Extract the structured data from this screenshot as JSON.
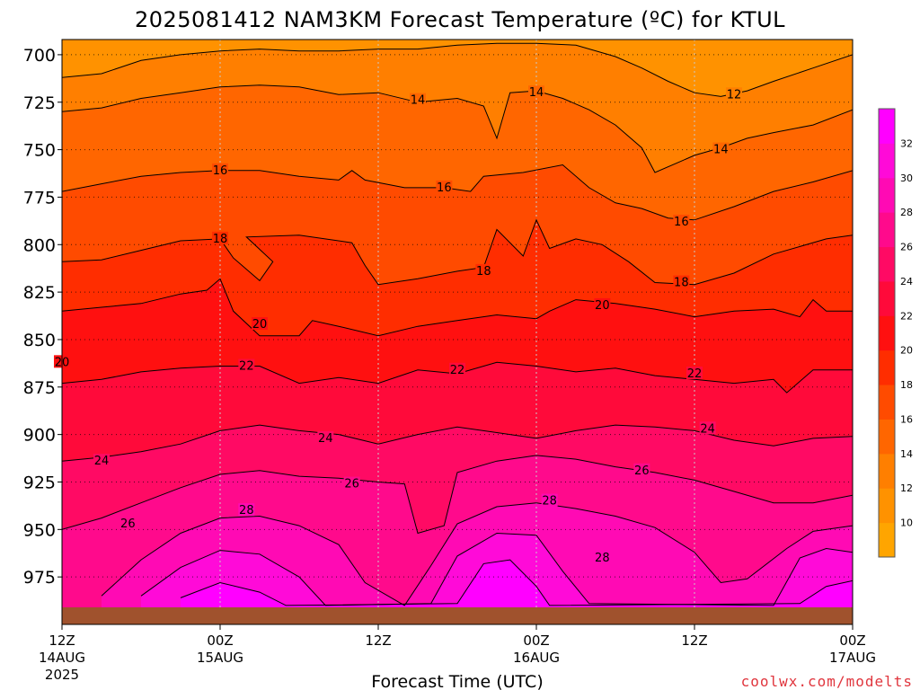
{
  "chart_data": {
    "type": "heatmap",
    "title": "2025081412 NAM3KM Forecast Temperature (ºC) for KTUL",
    "xlabel": "Forecast Time (UTC)",
    "ylabel": "",
    "y_scale": "pressure (inverted)",
    "ylim": [
      1000,
      692
    ],
    "y_ticks": [
      700,
      725,
      750,
      775,
      800,
      825,
      850,
      875,
      900,
      925,
      950,
      975
    ],
    "x_ticks": [
      {
        "hour": 0,
        "lines": [
          "12Z",
          "14AUG",
          "2025"
        ]
      },
      {
        "hour": 12,
        "lines": [
          "00Z",
          "15AUG"
        ]
      },
      {
        "hour": 24,
        "lines": [
          "12Z"
        ]
      },
      {
        "hour": 36,
        "lines": [
          "00Z",
          "16AUG"
        ]
      },
      {
        "hour": 48,
        "lines": [
          "12Z"
        ]
      },
      {
        "hour": 60,
        "lines": [
          "00Z",
          "17AUG"
        ]
      }
    ],
    "xlim": [
      0,
      60
    ],
    "grid": true,
    "colorbar": {
      "levels": [
        8,
        10,
        12,
        14,
        16,
        18,
        20,
        22,
        24,
        26,
        28,
        30,
        32,
        34
      ],
      "labels": [
        10,
        12,
        14,
        16,
        18,
        20,
        22,
        24,
        26,
        28,
        30,
        32
      ],
      "colors": [
        "#ffa500",
        "#ff9200",
        "#ff7f00",
        "#ff6600",
        "#ff4b00",
        "#ff2d00",
        "#ff1010",
        "#ff0a3a",
        "#ff0a64",
        "#ff0a8c",
        "#ff0ab4",
        "#ff0ad8",
        "#ff00ff"
      ]
    },
    "contour_labels": [
      12,
      14,
      16,
      18,
      20,
      22,
      24,
      26,
      28
    ],
    "isotherms": [
      {
        "t": 12,
        "points": [
          [
            0,
            712
          ],
          [
            3,
            710
          ],
          [
            6,
            703
          ],
          [
            9,
            700
          ],
          [
            12,
            698
          ],
          [
            15,
            697
          ],
          [
            18,
            698
          ],
          [
            21,
            698
          ],
          [
            24,
            697
          ],
          [
            27,
            697
          ],
          [
            30,
            695
          ],
          [
            33,
            694
          ],
          [
            36,
            694
          ],
          [
            39,
            695
          ],
          [
            42,
            701
          ],
          [
            44,
            707
          ],
          [
            46,
            714
          ],
          [
            48,
            720
          ],
          [
            50,
            722
          ],
          [
            52,
            719
          ],
          [
            54,
            714
          ],
          [
            57,
            707
          ],
          [
            60,
            700
          ]
        ],
        "labels": [
          [
            51,
            721
          ]
        ]
      },
      {
        "t": 14,
        "points": [
          [
            0,
            730
          ],
          [
            3,
            728
          ],
          [
            6,
            723
          ],
          [
            9,
            720
          ],
          [
            12,
            717
          ],
          [
            15,
            716
          ],
          [
            18,
            717
          ],
          [
            21,
            721
          ],
          [
            24,
            720
          ],
          [
            27,
            725
          ],
          [
            30,
            723
          ],
          [
            32,
            727
          ],
          [
            33,
            744
          ],
          [
            34,
            720
          ],
          [
            36,
            719
          ],
          [
            38,
            723
          ],
          [
            40,
            729
          ],
          [
            42,
            737
          ],
          [
            44,
            749
          ],
          [
            45,
            762
          ],
          [
            47,
            756
          ],
          [
            48,
            753
          ],
          [
            50,
            749
          ],
          [
            52,
            744
          ],
          [
            54,
            741
          ],
          [
            57,
            737
          ],
          [
            60,
            729
          ]
        ],
        "labels": [
          [
            27,
            724
          ],
          [
            36,
            720
          ],
          [
            50,
            750
          ]
        ]
      },
      {
        "t": 16,
        "points": [
          [
            0,
            772
          ],
          [
            3,
            768
          ],
          [
            6,
            764
          ],
          [
            9,
            762
          ],
          [
            12,
            761
          ],
          [
            15,
            761
          ],
          [
            18,
            764
          ],
          [
            21,
            766
          ],
          [
            22,
            761
          ],
          [
            23,
            766
          ],
          [
            26,
            770
          ],
          [
            29,
            770
          ],
          [
            31,
            772
          ],
          [
            32,
            764
          ],
          [
            35,
            762
          ],
          [
            38,
            758
          ],
          [
            40,
            770
          ],
          [
            42,
            778
          ],
          [
            44,
            781
          ],
          [
            46,
            786
          ],
          [
            48,
            787
          ],
          [
            51,
            780
          ],
          [
            54,
            772
          ],
          [
            57,
            767
          ],
          [
            60,
            761
          ]
        ],
        "labels": [
          [
            12,
            761
          ],
          [
            29,
            770
          ],
          [
            47,
            788
          ]
        ]
      },
      {
        "t": 18,
        "points": [
          [
            0,
            809
          ],
          [
            3,
            808
          ],
          [
            6,
            803
          ],
          [
            9,
            798
          ],
          [
            12,
            797
          ],
          [
            13,
            807
          ],
          [
            15,
            819
          ],
          [
            16,
            809
          ],
          [
            14,
            796
          ],
          [
            18,
            795
          ],
          [
            22,
            799
          ],
          [
            23,
            811
          ],
          [
            24,
            821
          ],
          [
            27,
            818
          ],
          [
            30,
            814
          ],
          [
            32,
            812
          ],
          [
            33,
            792
          ],
          [
            35,
            806
          ],
          [
            36,
            787
          ],
          [
            37,
            802
          ],
          [
            39,
            797
          ],
          [
            41,
            800
          ],
          [
            43,
            809
          ],
          [
            45,
            820
          ],
          [
            48,
            821
          ],
          [
            51,
            815
          ],
          [
            54,
            805
          ],
          [
            56,
            801
          ],
          [
            58,
            797
          ],
          [
            60,
            795
          ]
        ],
        "labels": [
          [
            12,
            797
          ],
          [
            32,
            814
          ],
          [
            47,
            820
          ]
        ]
      },
      {
        "t": 20,
        "points": [
          [
            0,
            835
          ],
          [
            3,
            833
          ],
          [
            6,
            831
          ],
          [
            9,
            826
          ],
          [
            11,
            824
          ],
          [
            12,
            818
          ],
          [
            13,
            835
          ],
          [
            15,
            848
          ],
          [
            18,
            848
          ],
          [
            19,
            840
          ],
          [
            21,
            843
          ],
          [
            24,
            848
          ],
          [
            27,
            843
          ],
          [
            30,
            840
          ],
          [
            33,
            837
          ],
          [
            36,
            839
          ],
          [
            37,
            835
          ],
          [
            39,
            829
          ],
          [
            42,
            831
          ],
          [
            45,
            834
          ],
          [
            48,
            838
          ],
          [
            51,
            835
          ],
          [
            54,
            834
          ],
          [
            56,
            838
          ],
          [
            57,
            829
          ],
          [
            58,
            835
          ],
          [
            60,
            835
          ]
        ],
        "labels": [
          [
            0,
            862
          ],
          [
            15,
            842
          ],
          [
            41,
            832
          ]
        ]
      },
      {
        "t": 22,
        "points": [
          [
            0,
            873
          ],
          [
            3,
            871
          ],
          [
            6,
            867
          ],
          [
            9,
            865
          ],
          [
            12,
            864
          ],
          [
            15,
            864
          ],
          [
            18,
            873
          ],
          [
            21,
            870
          ],
          [
            24,
            873
          ],
          [
            27,
            866
          ],
          [
            30,
            868
          ],
          [
            33,
            862
          ],
          [
            36,
            864
          ],
          [
            39,
            867
          ],
          [
            42,
            865
          ],
          [
            45,
            869
          ],
          [
            48,
            871
          ],
          [
            51,
            873
          ],
          [
            54,
            871
          ],
          [
            55,
            878
          ],
          [
            57,
            866
          ],
          [
            60,
            866
          ]
        ],
        "labels": [
          [
            14,
            864
          ],
          [
            30,
            866
          ],
          [
            48,
            868
          ]
        ]
      },
      {
        "t": 24,
        "points": [
          [
            0,
            914
          ],
          [
            3,
            912
          ],
          [
            6,
            909
          ],
          [
            9,
            905
          ],
          [
            12,
            898
          ],
          [
            15,
            895
          ],
          [
            18,
            898
          ],
          [
            21,
            900
          ],
          [
            24,
            905
          ],
          [
            27,
            900
          ],
          [
            30,
            896
          ],
          [
            33,
            899
          ],
          [
            36,
            902
          ],
          [
            39,
            898
          ],
          [
            42,
            895
          ],
          [
            45,
            896
          ],
          [
            48,
            898
          ],
          [
            51,
            903
          ],
          [
            54,
            906
          ],
          [
            57,
            902
          ],
          [
            60,
            901
          ]
        ],
        "labels": [
          [
            3,
            914
          ],
          [
            20,
            902
          ],
          [
            49,
            897
          ]
        ]
      },
      {
        "t": 26,
        "points": [
          [
            0,
            950
          ],
          [
            3,
            944
          ],
          [
            6,
            936
          ],
          [
            9,
            928
          ],
          [
            12,
            921
          ],
          [
            15,
            919
          ],
          [
            18,
            922
          ],
          [
            21,
            923
          ],
          [
            24,
            925
          ],
          [
            26,
            926
          ],
          [
            27,
            952
          ],
          [
            29,
            948
          ],
          [
            30,
            920
          ],
          [
            33,
            914
          ],
          [
            36,
            911
          ],
          [
            39,
            913
          ],
          [
            42,
            917
          ],
          [
            45,
            920
          ],
          [
            48,
            924
          ],
          [
            51,
            930
          ],
          [
            54,
            936
          ],
          [
            57,
            936
          ],
          [
            60,
            932
          ]
        ],
        "labels": [
          [
            5,
            947
          ],
          [
            22,
            926
          ],
          [
            44,
            919
          ]
        ]
      },
      {
        "t": 28,
        "points": [
          [
            3,
            985
          ],
          [
            6,
            966
          ],
          [
            9,
            952
          ],
          [
            12,
            944
          ],
          [
            15,
            943
          ],
          [
            18,
            948
          ],
          [
            21,
            958
          ],
          [
            23,
            978
          ],
          [
            26,
            990
          ],
          [
            28,
            969
          ],
          [
            30,
            947
          ],
          [
            33,
            938
          ],
          [
            36,
            936
          ],
          [
            39,
            939
          ],
          [
            42,
            943
          ],
          [
            45,
            949
          ],
          [
            48,
            962
          ],
          [
            50,
            978
          ],
          [
            52,
            976
          ],
          [
            55,
            960
          ],
          [
            57,
            951
          ],
          [
            60,
            948
          ]
        ],
        "labels": [
          [
            14,
            940
          ],
          [
            37,
            935
          ],
          [
            41,
            965
          ]
        ]
      },
      {
        "t": 30,
        "points": [
          [
            6,
            985
          ],
          [
            9,
            970
          ],
          [
            12,
            961
          ],
          [
            15,
            963
          ],
          [
            18,
            975
          ],
          [
            20,
            990
          ],
          [
            28,
            989
          ],
          [
            30,
            964
          ],
          [
            33,
            952
          ],
          [
            36,
            953
          ],
          [
            38,
            972
          ],
          [
            40,
            989
          ],
          [
            54,
            990
          ],
          [
            56,
            965
          ],
          [
            58,
            960
          ],
          [
            60,
            962
          ]
        ],
        "labels": []
      },
      {
        "t": 32,
        "points": [
          [
            9,
            986
          ],
          [
            12,
            978
          ],
          [
            15,
            983
          ],
          [
            17,
            990
          ],
          [
            30,
            989
          ],
          [
            32,
            968
          ],
          [
            34,
            966
          ],
          [
            36,
            980
          ],
          [
            37,
            990
          ],
          [
            56,
            989
          ],
          [
            58,
            980
          ],
          [
            60,
            977
          ]
        ],
        "labels": []
      }
    ]
  },
  "watermark": "coolwx.com/modelts"
}
